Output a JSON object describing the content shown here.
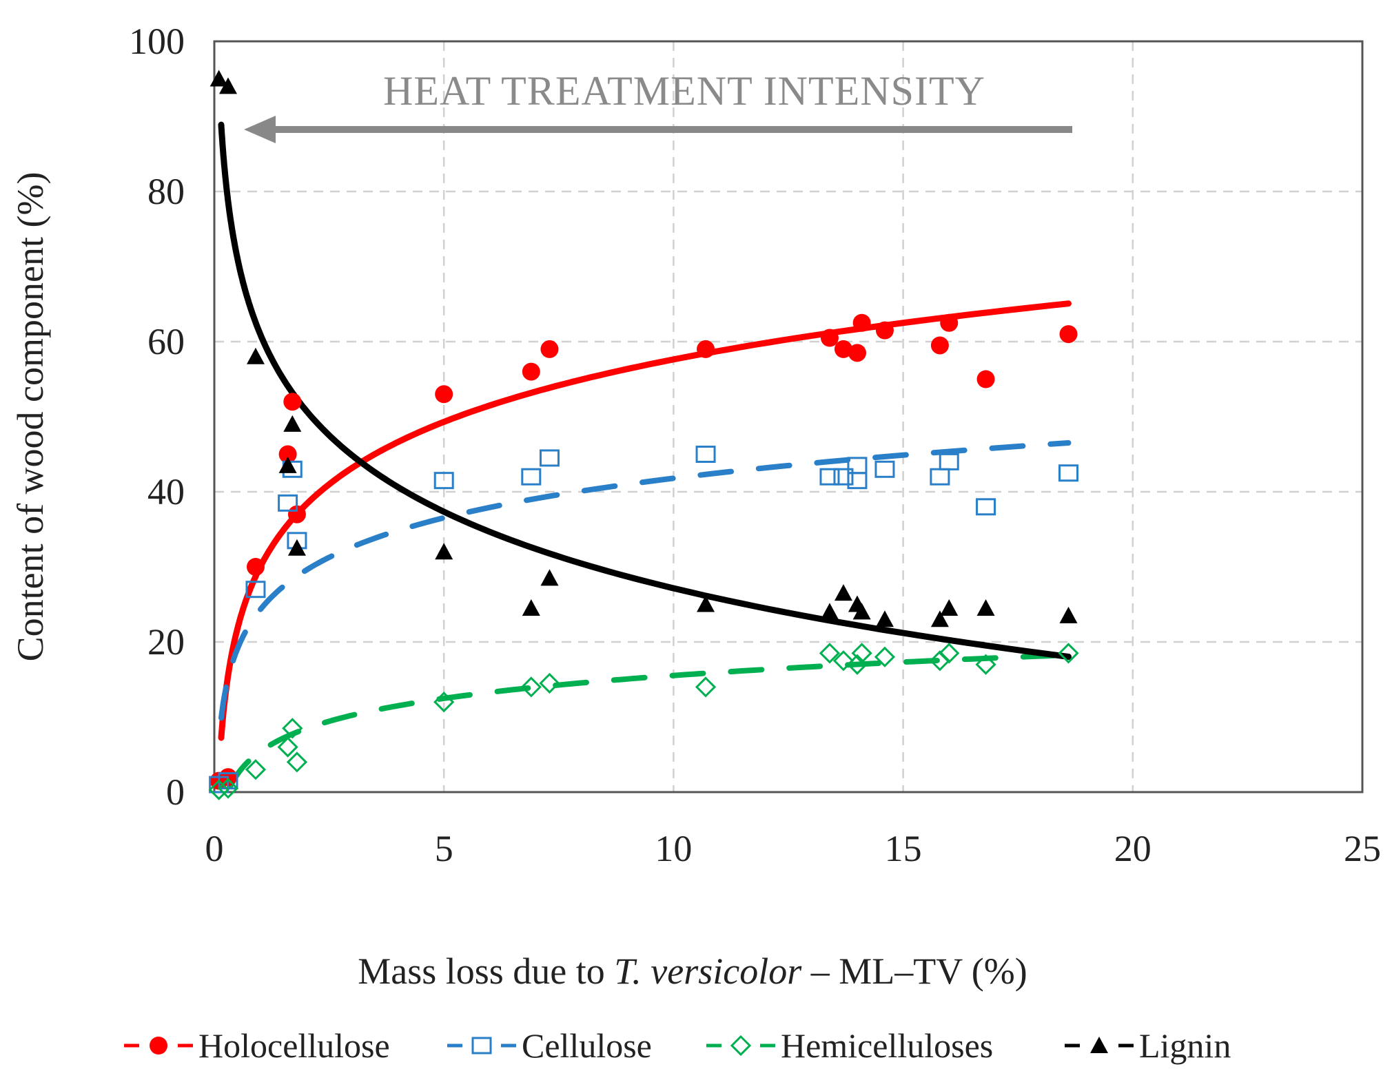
{
  "chart_data": {
    "type": "scatter",
    "title": "",
    "annotation": "HEAT TREATMENT INTENSITY",
    "xlabel_parts": [
      "Mass loss due to ",
      "T. versicolor",
      " – ML–TV (%)"
    ],
    "ylabel": "Content of wood component (%)",
    "xlim": [
      0,
      25
    ],
    "ylim": [
      0,
      100
    ],
    "xticks": [
      "0",
      "5",
      "10",
      "15",
      "20",
      "25"
    ],
    "yticks": [
      "0",
      "20",
      "40",
      "60",
      "80",
      "100"
    ],
    "grid": true,
    "legend_position": "bottom",
    "series": [
      {
        "name": "Holocellulose",
        "color": "#ff0000",
        "marker": "circle-filled",
        "trend": {
          "type": "log",
          "a": 30,
          "b": 12,
          "line": "solid"
        },
        "x": [
          0.1,
          0.3,
          0.9,
          1.6,
          1.7,
          1.8,
          5,
          6.9,
          7.3,
          10.7,
          13.4,
          13.7,
          14,
          14.1,
          14.6,
          15.8,
          16,
          16.8,
          18.6
        ],
        "y": [
          1.5,
          2,
          30,
          45,
          52,
          37,
          53,
          56,
          59,
          59,
          60.5,
          59,
          58.5,
          62.5,
          61.5,
          59.5,
          62.5,
          55,
          61
        ]
      },
      {
        "name": "Cellulose",
        "color": "#2a7fc9",
        "marker": "square-open",
        "trend": {
          "type": "log",
          "a": 24.3,
          "b": 7.6,
          "line": "dashed"
        },
        "x": [
          0.1,
          0.3,
          0.9,
          1.6,
          1.7,
          1.8,
          5,
          6.9,
          7.3,
          10.7,
          13.4,
          13.7,
          14,
          14,
          14.6,
          15.8,
          16,
          16.8,
          18.6
        ],
        "y": [
          1,
          1.5,
          27,
          38.5,
          43,
          33.5,
          41.5,
          42,
          44.5,
          45,
          42,
          42,
          43.5,
          41.5,
          43,
          42,
          44,
          38,
          42.5
        ]
      },
      {
        "name": "Hemicelluloses",
        "color": "#00b050",
        "marker": "diamond-open",
        "trend": {
          "type": "log",
          "a": 5.4,
          "b": 4.4,
          "line": "dashed"
        },
        "x": [
          0.1,
          0.3,
          0.9,
          1.6,
          1.7,
          1.8,
          5,
          6.9,
          7.3,
          10.7,
          13.4,
          13.7,
          14,
          14.1,
          14.6,
          15.8,
          16,
          16.8,
          18.6
        ],
        "y": [
          0.3,
          0.5,
          3,
          6,
          8.5,
          4,
          12,
          14,
          14.5,
          14,
          18.5,
          17.5,
          17,
          18.5,
          18,
          17.5,
          18.5,
          17,
          18.5
        ]
      },
      {
        "name": "Lignin",
        "color": "#000000",
        "marker": "triangle-filled",
        "trend": {
          "type": "log",
          "a": 61,
          "b": -14.7,
          "line": "solid"
        },
        "x": [
          0.1,
          0.3,
          0.9,
          1.6,
          1.7,
          1.8,
          5,
          6.9,
          7.3,
          10.7,
          13.4,
          13.7,
          14,
          14.1,
          14.6,
          15.8,
          16,
          16.8,
          18.6
        ],
        "y": [
          95,
          94,
          58,
          43.5,
          49,
          32.5,
          32,
          24.5,
          28.5,
          25,
          24,
          26.5,
          25,
          24,
          23,
          23,
          24.5,
          24.5,
          23.5
        ]
      }
    ]
  }
}
